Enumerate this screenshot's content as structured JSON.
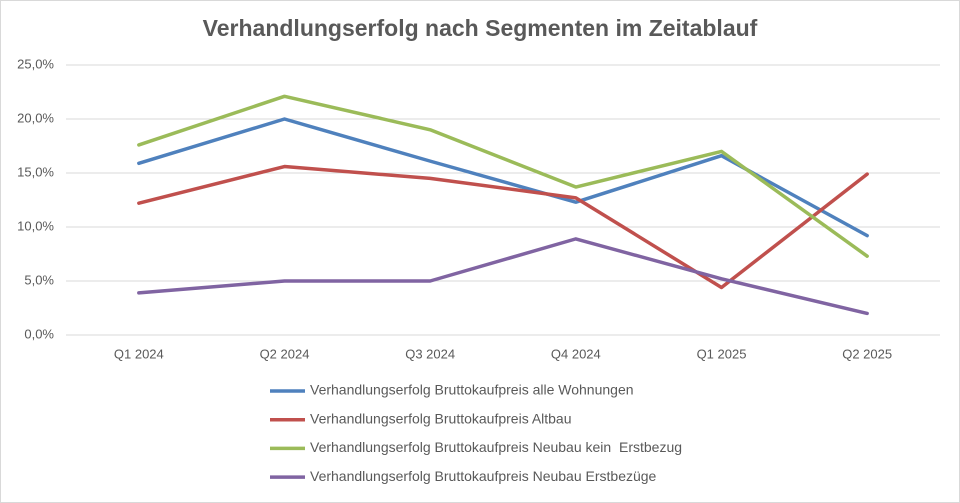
{
  "chart_data": {
    "type": "line",
    "title": "Verhandlungserfolg nach Segmenten im Zeitablauf",
    "categories": [
      "Q1 2024",
      "Q2 2024",
      "Q3 2024",
      "Q4 2024",
      "Q1 2025",
      "Q2 2025"
    ],
    "series": [
      {
        "name": "Verhandlungserfolg Bruttokaufpreis alle Wohnungen",
        "color": "#4f81bd",
        "values": [
          15.9,
          20.0,
          16.1,
          12.3,
          16.6,
          9.2
        ]
      },
      {
        "name": "Verhandlungserfolg Bruttokaufpreis Altbau",
        "color": "#c0504d",
        "values": [
          12.2,
          15.6,
          14.5,
          12.7,
          4.4,
          14.9
        ]
      },
      {
        "name": "Verhandlungserfolg Bruttokaufpreis Neubau kein  Erstbezug",
        "color": "#9bbb59",
        "values": [
          17.6,
          22.1,
          19.0,
          13.7,
          17.0,
          7.3
        ]
      },
      {
        "name": "Verhandlungserfolg Bruttokaufpreis Neubau Erstbezüge",
        "color": "#8064a2",
        "values": [
          3.9,
          5.0,
          5.0,
          8.9,
          5.2,
          2.0
        ]
      }
    ],
    "ylim": [
      0,
      25
    ],
    "yticks": [
      {
        "value": 0,
        "label": "0,0%"
      },
      {
        "value": 5,
        "label": "5,0%"
      },
      {
        "value": 10,
        "label": "10,0%"
      },
      {
        "value": 15,
        "label": "15,0%"
      },
      {
        "value": 20,
        "label": "20,0%"
      },
      {
        "value": 25,
        "label": "25,0%"
      }
    ],
    "grid": true,
    "legend": "bottom"
  }
}
